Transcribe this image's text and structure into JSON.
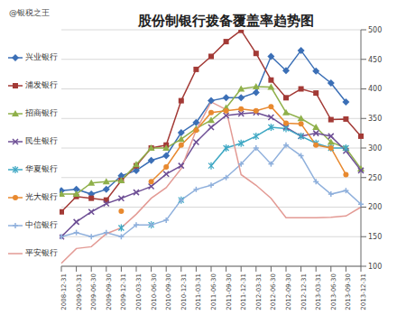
{
  "chart_data": {
    "type": "line",
    "title": "股份制银行拨备覆盖率趋势图",
    "annotations": [
      "@银税之王"
    ],
    "categories": [
      "2008-12-31",
      "2009-03-31",
      "2009-06-30",
      "2009-09-30",
      "2009-12-31",
      "2010-03-31",
      "2010-06-30",
      "2010-09-30",
      "2010-12-31",
      "2011-03-31",
      "2011-06-30",
      "2011-09-30",
      "2011-12-31",
      "2012-03-31",
      "2012-06-30",
      "2012-09-30",
      "2012-12-31",
      "2013-03-31",
      "2013-06-30",
      "2013-09-30",
      "2013-12-31"
    ],
    "ylim": [
      100,
      500
    ],
    "yticks": [
      100,
      150,
      200,
      250,
      300,
      350,
      400,
      450,
      500
    ],
    "grid": true,
    "legend": "left",
    "series": [
      {
        "name": "兴业银行",
        "color": "#3b6fb6",
        "marker": "diamond",
        "values": [
          228,
          230,
          222,
          230,
          253,
          262,
          279,
          287,
          326,
          343,
          380,
          385,
          385,
          394,
          455,
          431,
          465,
          430,
          410,
          378,
          null
        ]
      },
      {
        "name": "浦发银行",
        "color": "#a33a36",
        "marker": "square",
        "values": [
          192,
          218,
          215,
          212,
          245,
          270,
          300,
          305,
          380,
          433,
          455,
          480,
          499,
          460,
          415,
          385,
          400,
          393,
          348,
          349,
          320
        ]
      },
      {
        "name": "招商银行",
        "color": "#8fb04a",
        "marker": "triangle",
        "values": [
          222,
          222,
          241,
          243,
          245,
          272,
          300,
          300,
          315,
          333,
          347,
          368,
          400,
          404,
          403,
          360,
          350,
          335,
          310,
          300,
          265
        ]
      },
      {
        "name": "民生银行",
        "color": "#6e4f95",
        "marker": "x",
        "values": [
          150,
          175,
          192,
          206,
          215,
          225,
          235,
          256,
          270,
          310,
          335,
          355,
          358,
          360,
          352,
          335,
          320,
          325,
          320,
          295,
          262
        ]
      },
      {
        "name": "华夏银行",
        "color": "#3fa8c4",
        "marker": "star",
        "values": [
          null,
          null,
          null,
          null,
          165,
          null,
          170,
          null,
          212,
          null,
          270,
          300,
          308,
          320,
          335,
          333,
          320,
          308,
          300,
          300,
          null
        ]
      },
      {
        "name": "光大银行",
        "color": "#e8892f",
        "marker": "circle",
        "values": [
          null,
          null,
          null,
          null,
          193,
          null,
          243,
          268,
          305,
          330,
          360,
          363,
          366,
          363,
          370,
          342,
          341,
          305,
          300,
          255,
          null
        ]
      },
      {
        "name": "中信银行",
        "color": "#8fb0dc",
        "marker": "plus",
        "values": [
          150,
          157,
          150,
          157,
          150,
          170,
          170,
          178,
          212,
          230,
          237,
          250,
          273,
          300,
          273,
          305,
          287,
          243,
          222,
          228,
          205
        ]
      },
      {
        "name": "平安银行",
        "color": "#e39a94",
        "marker": "none",
        "values": [
          105,
          130,
          133,
          155,
          165,
          188,
          215,
          233,
          265,
          330,
          378,
          365,
          255,
          237,
          215,
          182,
          182,
          182,
          183,
          185,
          200
        ]
      }
    ]
  }
}
